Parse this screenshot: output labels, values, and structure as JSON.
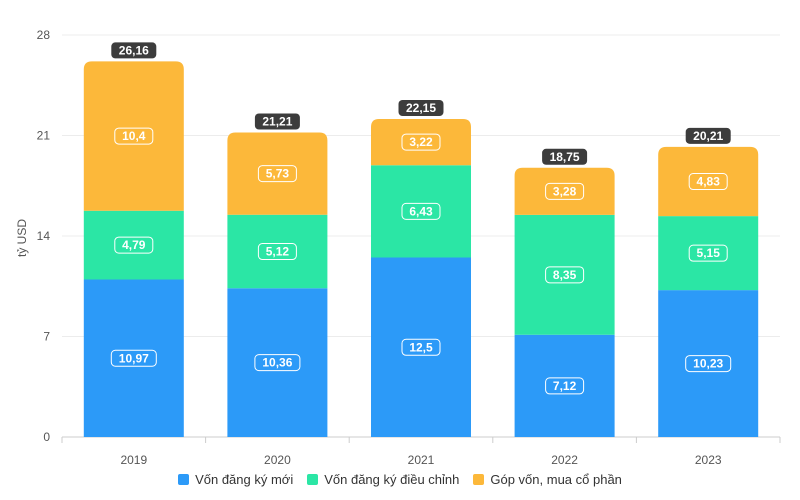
{
  "chart_data": {
    "type": "bar",
    "stacked": true,
    "categories": [
      "2019",
      "2020",
      "2021",
      "2022",
      "2023"
    ],
    "series": [
      {
        "name": "Vốn đăng ký mới",
        "color": "#2c9af8",
        "values": [
          10.97,
          10.36,
          12.5,
          7.12,
          10.23
        ],
        "labels": [
          "10,97",
          "10,36",
          "12,5",
          "7,12",
          "10,23"
        ]
      },
      {
        "name": "Vốn đăng ký điều chỉnh",
        "color": "#2be6a5",
        "values": [
          4.79,
          5.12,
          6.43,
          8.35,
          5.15
        ],
        "labels": [
          "4,79",
          "5,12",
          "6,43",
          "8,35",
          "5,15"
        ]
      },
      {
        "name": "Góp vốn, mua cổ phần",
        "color": "#fcb83a",
        "values": [
          10.4,
          5.73,
          3.22,
          3.28,
          4.83
        ],
        "labels": [
          "10,4",
          "5,73",
          "3,22",
          "3,28",
          "4,83"
        ]
      }
    ],
    "totals": [
      "26,16",
      "21,21",
      "22,15",
      "18,75",
      "20,21"
    ],
    "ylabel": "tỷ USD",
    "ylim": [
      0,
      28
    ],
    "yticks": [
      "0",
      "7",
      "14",
      "21",
      "28"
    ],
    "grid": true,
    "legend_position": "bottom"
  }
}
